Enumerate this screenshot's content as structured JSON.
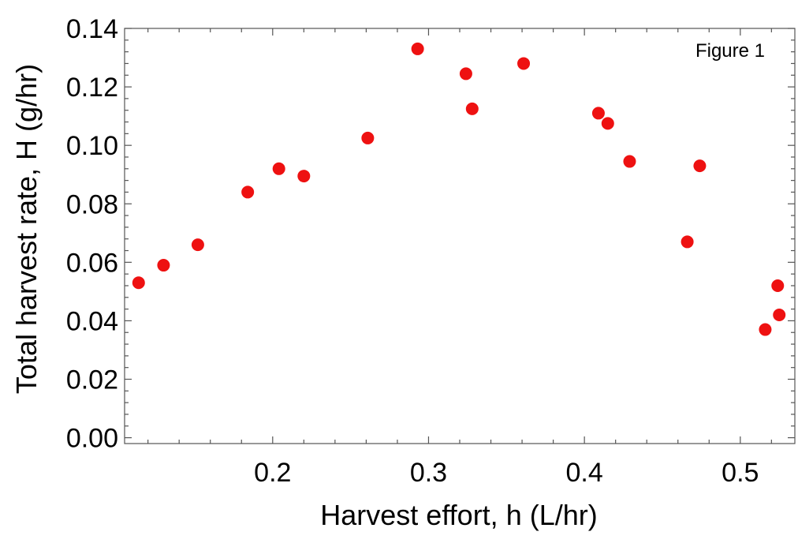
{
  "chart_data": {
    "type": "scatter",
    "title": "",
    "annotation": "Figure 1",
    "xlabel": "Harvest effort, h (L/hr)",
    "ylabel": "Total harvest rate, H (g/hr)",
    "xlim": [
      0.105,
      0.535
    ],
    "ylim": [
      -0.002,
      0.14
    ],
    "xticks": [
      0.2,
      0.3,
      0.4,
      0.5
    ],
    "xtick_labels": [
      "0.2",
      "0.3",
      "0.4",
      "0.5"
    ],
    "yticks": [
      0.0,
      0.02,
      0.04,
      0.06,
      0.08,
      0.1,
      0.12,
      0.14
    ],
    "ytick_labels": [
      "0.00",
      "0.02",
      "0.04",
      "0.06",
      "0.08",
      "0.10",
      "0.12",
      "0.14"
    ],
    "grid": false,
    "marker_color": "#ee1111",
    "points": [
      {
        "x": 0.114,
        "y": 0.053
      },
      {
        "x": 0.13,
        "y": 0.059
      },
      {
        "x": 0.152,
        "y": 0.066
      },
      {
        "x": 0.184,
        "y": 0.084
      },
      {
        "x": 0.204,
        "y": 0.092
      },
      {
        "x": 0.22,
        "y": 0.0895
      },
      {
        "x": 0.261,
        "y": 0.1025
      },
      {
        "x": 0.293,
        "y": 0.133
      },
      {
        "x": 0.324,
        "y": 0.1245
      },
      {
        "x": 0.328,
        "y": 0.1125
      },
      {
        "x": 0.361,
        "y": 0.128
      },
      {
        "x": 0.409,
        "y": 0.111
      },
      {
        "x": 0.415,
        "y": 0.1075
      },
      {
        "x": 0.429,
        "y": 0.0945
      },
      {
        "x": 0.466,
        "y": 0.067
      },
      {
        "x": 0.474,
        "y": 0.093
      },
      {
        "x": 0.516,
        "y": 0.037
      },
      {
        "x": 0.524,
        "y": 0.052
      },
      {
        "x": 0.525,
        "y": 0.042
      }
    ]
  }
}
